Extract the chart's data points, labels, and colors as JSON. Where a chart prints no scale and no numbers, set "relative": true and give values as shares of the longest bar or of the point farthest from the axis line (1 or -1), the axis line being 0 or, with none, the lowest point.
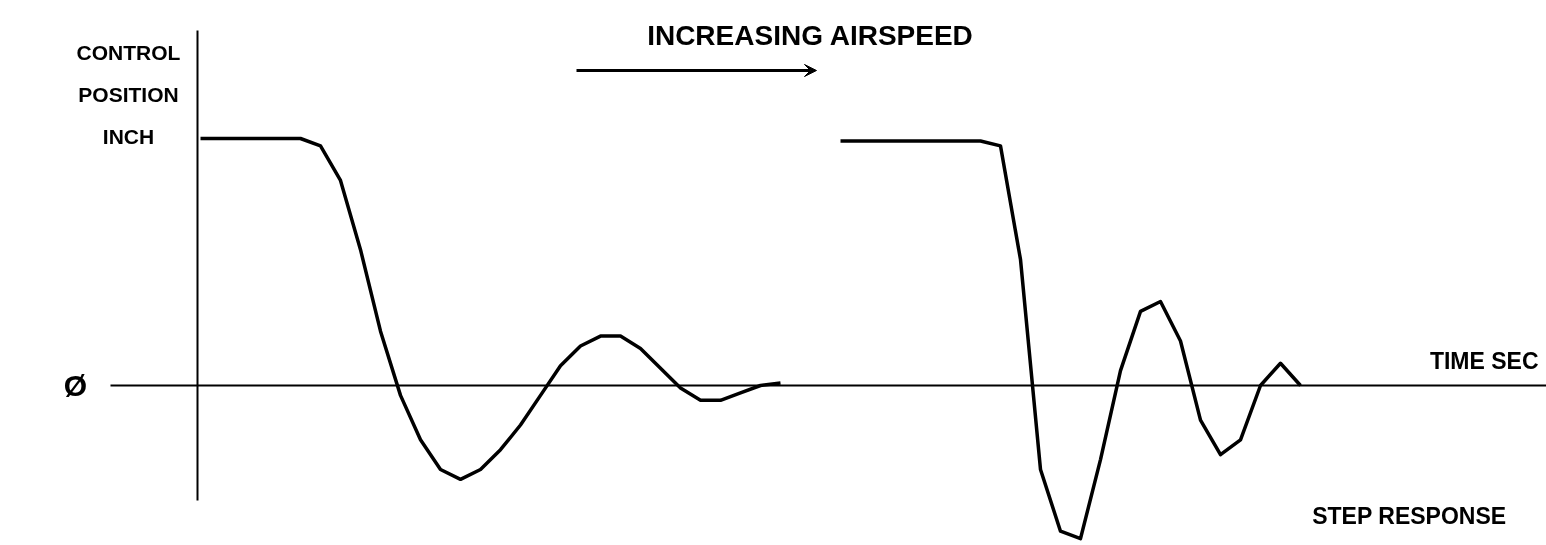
{
  "chart_data": {
    "type": "line",
    "relative": true,
    "title": "INCREASING AIRSPEED",
    "ylabel": "CONTROL POSITION INCH",
    "annotations": [
      "Ø",
      "TIME SEC",
      "STEP RESPONSE"
    ],
    "categories": [
      null,
      null,
      null,
      null,
      null,
      null,
      null,
      null,
      null,
      null,
      null,
      null,
      null,
      null,
      null,
      null,
      null,
      null,
      null,
      null,
      null,
      null,
      null,
      null,
      null,
      null,
      null,
      null,
      null,
      null,
      null,
      null,
      null,
      null,
      null,
      null,
      null,
      null,
      null,
      null,
      null,
      null,
      null,
      null,
      null,
      null,
      null,
      null,
      null,
      null,
      null,
      null,
      null,
      null,
      null,
      null
    ],
    "series": [
      {
        "color": "#000000",
        "values": [
          1,
          1,
          1,
          1,
          1,
          1,
          0.97,
          0.83,
          0.55,
          0.22,
          -0.04,
          -0.22,
          -0.34,
          -0.38,
          -0.34,
          -0.26,
          -0.16,
          -0.04,
          0.08,
          0.16,
          0.2,
          0.2,
          0.15,
          0.07,
          -0.01,
          -0.06,
          -0.06,
          -0.03,
          0,
          0.01,
          null,
          null,
          null,
          null,
          null,
          null,
          null,
          null,
          null,
          null,
          null,
          null,
          null,
          null,
          null,
          null,
          null,
          null,
          null,
          null,
          null,
          null,
          null,
          null,
          null,
          null
        ]
      },
      {
        "color": "#000000",
        "values": [
          null,
          null,
          null,
          null,
          null,
          null,
          null,
          null,
          null,
          null,
          null,
          null,
          null,
          null,
          null,
          null,
          null,
          null,
          null,
          null,
          null,
          null,
          null,
          null,
          null,
          null,
          null,
          null,
          null,
          null,
          null,
          null,
          0.99,
          0.99,
          0.99,
          0.99,
          0.99,
          0.99,
          0.99,
          0.99,
          0.97,
          0.51,
          -0.34,
          -0.59,
          -0.62,
          -0.3,
          0.06,
          0.3,
          0.34,
          0.18,
          -0.14,
          -0.28,
          -0.22,
          0,
          0.09,
          0
        ]
      }
    ]
  }
}
